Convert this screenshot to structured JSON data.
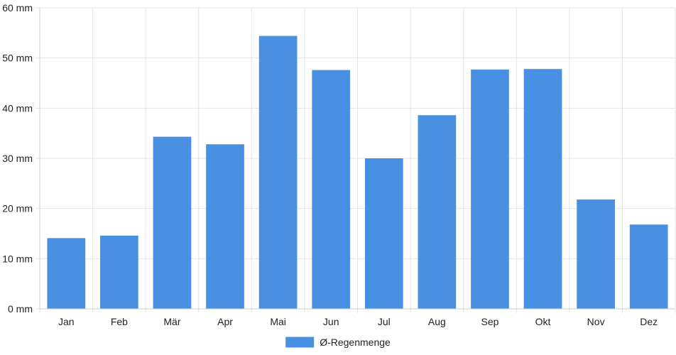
{
  "chart_data": {
    "type": "bar",
    "categories": [
      "Jan",
      "Feb",
      "Mär",
      "Apr",
      "Mai",
      "Jun",
      "Jul",
      "Aug",
      "Sep",
      "Okt",
      "Nov",
      "Dez"
    ],
    "series": [
      {
        "name": "Ø-Regenmenge",
        "color": "#4a90e2",
        "values": [
          14.1,
          14.6,
          34.3,
          32.8,
          54.4,
          47.6,
          30.0,
          38.6,
          47.7,
          47.8,
          21.8,
          16.8
        ]
      }
    ],
    "y_ticks": [
      "0 mm",
      "10 mm",
      "20 mm",
      "30 mm",
      "40 mm",
      "50 mm",
      "60 mm"
    ],
    "ylim": [
      0,
      60
    ],
    "y_unit": "mm",
    "grid": true,
    "legend_position": "bottom-center",
    "title": "",
    "xlabel": "",
    "ylabel": ""
  }
}
